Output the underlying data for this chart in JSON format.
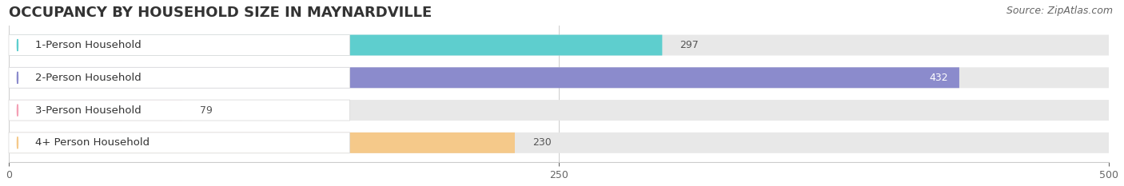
{
  "title": "OCCUPANCY BY HOUSEHOLD SIZE IN MAYNARDVILLE",
  "source": "Source: ZipAtlas.com",
  "categories": [
    "1-Person Household",
    "2-Person Household",
    "3-Person Household",
    "4+ Person Household"
  ],
  "values": [
    297,
    432,
    79,
    230
  ],
  "bar_colors": [
    "#5ecece",
    "#8b8bcc",
    "#f4a0b5",
    "#f5c98a"
  ],
  "label_bg_color": "#ffffff",
  "bar_bg_color": "#e8e8e8",
  "xlim": [
    0,
    500
  ],
  "xticks": [
    0,
    250,
    500
  ],
  "title_fontsize": 13,
  "source_fontsize": 9,
  "bar_label_fontsize": 9,
  "category_fontsize": 9.5,
  "background_color": "#ffffff",
  "bar_height": 0.62,
  "figsize": [
    14.06,
    2.33
  ],
  "dpi": 100
}
